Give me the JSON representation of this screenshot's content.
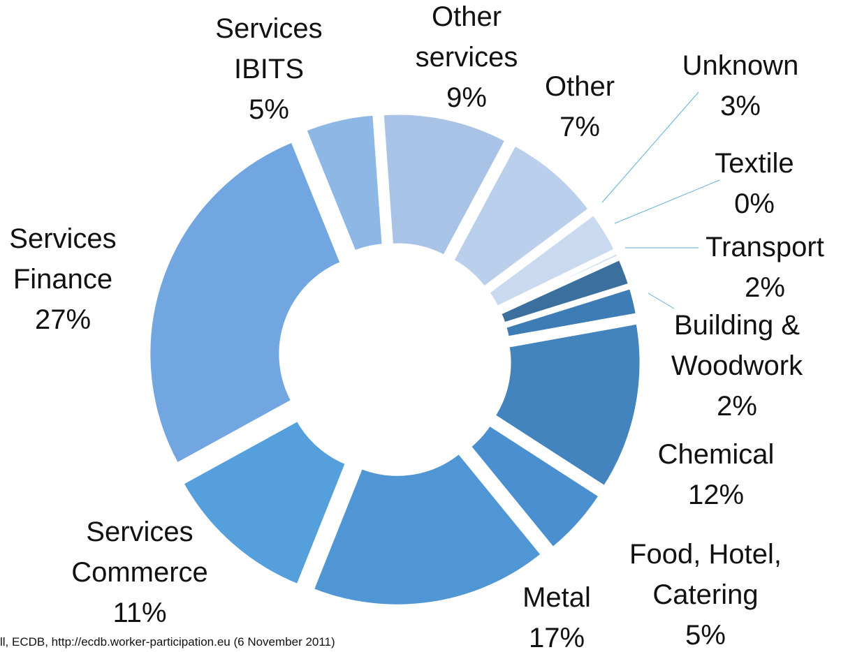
{
  "chart_data": {
    "type": "donut",
    "categories": [
      "Services\nIBITS",
      "Other\nservices",
      "Other",
      "Unknown",
      "Textile",
      "Transport",
      "Building &\nWoodwork",
      "Chemical",
      "Food, Hotel,\nCatering",
      "Metal",
      "Services\nCommerce",
      "Services\nFinance"
    ],
    "values": [
      5,
      9,
      7,
      3,
      0.4,
      2,
      2,
      12,
      5,
      17,
      11,
      27
    ],
    "value_labels": [
      "5%",
      "9%",
      "7%",
      "3%",
      "0%",
      "2%",
      "2%",
      "12%",
      "5%",
      "17%",
      "11%",
      "27%"
    ],
    "colors": [
      "#8db8e6",
      "#a9c3e7",
      "#b9cfec",
      "#c8d9f0",
      "#d0dcf3",
      "#3a6f9e",
      "#3d7cb4",
      "#4384be",
      "#4a8fcf",
      "#5096d4",
      "#55a0dc",
      "#72a6e1"
    ],
    "note": "ll, ECDB, http://ecdb.worker-participation.eu (6 November 2011)"
  }
}
